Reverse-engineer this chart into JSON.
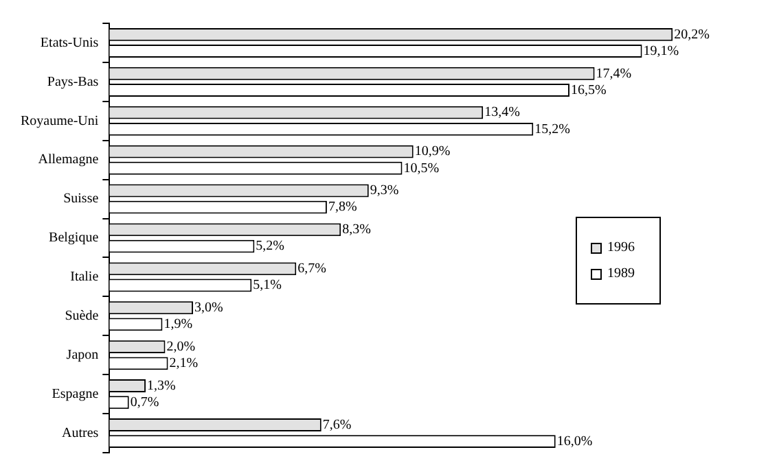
{
  "chart_data": {
    "type": "bar",
    "orientation": "horizontal",
    "categories": [
      "Etats-Unis",
      "Pays-Bas",
      "Royaume-Uni",
      "Allemagne",
      "Suisse",
      "Belgique",
      "Italie",
      "Suède",
      "Japon",
      "Espagne",
      "Autres"
    ],
    "series": [
      {
        "name": "1996",
        "color": "#e2e2e2",
        "values": [
          20.2,
          17.4,
          13.4,
          10.9,
          9.3,
          8.3,
          6.7,
          3.0,
          2.0,
          1.3,
          7.6
        ],
        "value_labels": [
          "20,2%",
          "17,4%",
          "13,4%",
          "10,9%",
          "9,3%",
          "8,3%",
          "6,7%",
          "3,0%",
          "2,0%",
          "1,3%",
          "7,6%"
        ]
      },
      {
        "name": "1989",
        "color": "#ffffff",
        "values": [
          19.1,
          16.5,
          15.2,
          10.5,
          7.8,
          5.2,
          5.1,
          1.9,
          2.1,
          0.7,
          16.0
        ],
        "value_labels": [
          "19,1%",
          "16,5%",
          "15,2%",
          "10,5%",
          "7,8%",
          "5,2%",
          "5,1%",
          "1,9%",
          "2,1%",
          "0,7%",
          "16,0%"
        ]
      }
    ],
    "legend": "right",
    "tick_labels": "y"
  }
}
